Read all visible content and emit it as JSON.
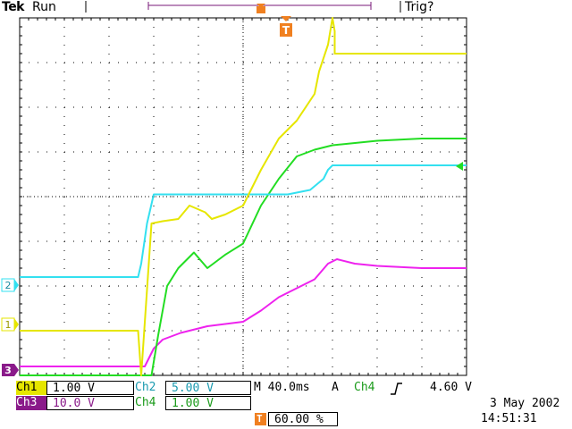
{
  "header": {
    "brand": "Tek",
    "acq_state": "Run",
    "trigger_status": "Trig?"
  },
  "markers": {
    "trigger_glyph": "T",
    "ch1": "1",
    "ch2": "2",
    "ch3": "3"
  },
  "colors": {
    "ch1": "#e6e600",
    "ch2": "#33e0f0",
    "ch3": "#ee22ee",
    "ch4": "#22dd22",
    "trigger_marker": "#f08020",
    "grid": "#000000"
  },
  "readouts": {
    "ch1_label": "Ch1",
    "ch1_scale": "1.00 V",
    "ch2_label": "Ch2",
    "ch2_scale": "5.00 V",
    "ch3_label": "Ch3",
    "ch3_scale": "10.0 V",
    "ch4_label": "Ch4",
    "ch4_scale": "1.00 V",
    "timebase": "M 40.0ms",
    "trigger_mode": "A",
    "trigger_source": "Ch4",
    "trigger_slope_icon": "rising-edge-icon",
    "trigger_level": "4.60 V",
    "trigger_position": "60.00 %"
  },
  "datetime": {
    "date": "3 May 2002",
    "time": "14:51:31"
  },
  "chart_data": {
    "type": "line",
    "x_divisions": 10,
    "y_divisions": 8,
    "note_units": "x in horizontal divisions (0-10), y in vertical divisions from top (0-8)",
    "series": [
      {
        "name": "Ch1",
        "values": [
          [
            0,
            7.0
          ],
          [
            2.65,
            7.0
          ],
          [
            2.72,
            8.0
          ],
          [
            2.95,
            4.6
          ],
          [
            3.2,
            4.55
          ],
          [
            3.55,
            4.5
          ],
          [
            3.8,
            4.2
          ],
          [
            4.15,
            4.35
          ],
          [
            4.3,
            4.5
          ],
          [
            4.6,
            4.4
          ],
          [
            5.0,
            4.2
          ],
          [
            5.4,
            3.4
          ],
          [
            5.8,
            2.7
          ],
          [
            6.2,
            2.3
          ],
          [
            6.6,
            1.7
          ],
          [
            6.7,
            1.2
          ],
          [
            6.9,
            0.6
          ],
          [
            7.0,
            0.0
          ],
          [
            7.05,
            0.3
          ],
          [
            7.05,
            0.8
          ],
          [
            8.0,
            0.8
          ],
          [
            10.0,
            0.8
          ]
        ]
      },
      {
        "name": "Ch2",
        "values": [
          [
            0,
            5.8
          ],
          [
            2.65,
            5.8
          ],
          [
            2.72,
            5.5
          ],
          [
            2.85,
            4.6
          ],
          [
            3.0,
            3.95
          ],
          [
            6.0,
            3.95
          ],
          [
            6.5,
            3.85
          ],
          [
            6.8,
            3.6
          ],
          [
            6.9,
            3.4
          ],
          [
            7.0,
            3.3
          ],
          [
            10.0,
            3.3
          ]
        ]
      },
      {
        "name": "Ch3",
        "values": [
          [
            0,
            7.8
          ],
          [
            2.8,
            7.8
          ],
          [
            3.0,
            7.4
          ],
          [
            3.2,
            7.2
          ],
          [
            3.6,
            7.05
          ],
          [
            4.2,
            6.9
          ],
          [
            5.0,
            6.8
          ],
          [
            5.4,
            6.55
          ],
          [
            5.8,
            6.25
          ],
          [
            6.2,
            6.05
          ],
          [
            6.6,
            5.85
          ],
          [
            6.9,
            5.5
          ],
          [
            7.1,
            5.4
          ],
          [
            7.5,
            5.5
          ],
          [
            8.0,
            5.55
          ],
          [
            9.0,
            5.6
          ],
          [
            10.0,
            5.6
          ]
        ]
      },
      {
        "name": "Ch4",
        "values": [
          [
            0,
            8.0
          ],
          [
            2.95,
            8.0
          ],
          [
            3.1,
            7.1
          ],
          [
            3.3,
            6.0
          ],
          [
            3.55,
            5.6
          ],
          [
            3.9,
            5.25
          ],
          [
            4.2,
            5.6
          ],
          [
            4.6,
            5.3
          ],
          [
            5.0,
            5.05
          ],
          [
            5.4,
            4.2
          ],
          [
            5.8,
            3.6
          ],
          [
            6.2,
            3.1
          ],
          [
            6.6,
            2.95
          ],
          [
            7.0,
            2.85
          ],
          [
            8.0,
            2.75
          ],
          [
            9.0,
            2.7
          ],
          [
            10.0,
            2.7
          ]
        ]
      }
    ]
  }
}
